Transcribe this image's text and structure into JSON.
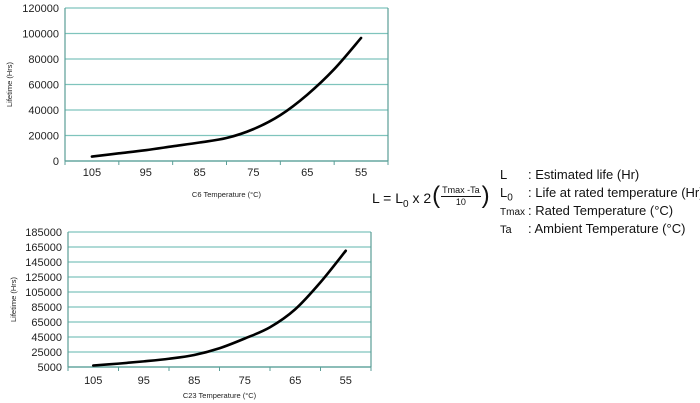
{
  "chart_data": [
    {
      "type": "line",
      "xlabel": "C6 Temperature (°C)",
      "ylabel": "Lifetime (Hrs)",
      "categories": [
        "105",
        "95",
        "85",
        "75",
        "65",
        "55"
      ],
      "ylim": [
        0,
        120000
      ],
      "yticks": [
        "0",
        "20000",
        "40000",
        "60000",
        "80000",
        "100000",
        "120000"
      ],
      "grid": true,
      "x": [
        105,
        100,
        95,
        90,
        85,
        80,
        75,
        70,
        65,
        60,
        55
      ],
      "values": [
        3500,
        6000,
        8500,
        11500,
        14500,
        18000,
        25000,
        36000,
        52000,
        72000,
        96500
      ]
    },
    {
      "type": "line",
      "xlabel": "C23 Temperature (°C)",
      "ylabel": "Lifetime (Hrs)",
      "categories": [
        "105",
        "95",
        "85",
        "75",
        "65",
        "55"
      ],
      "ylim": [
        5000,
        185000
      ],
      "yticks": [
        "5000",
        "25000",
        "45000",
        "65000",
        "85000",
        "105000",
        "125000",
        "145000",
        "165000",
        "185000"
      ],
      "grid": true,
      "x": [
        105,
        100,
        95,
        90,
        85,
        80,
        75,
        70,
        65,
        60,
        55
      ],
      "values": [
        7000,
        9500,
        12500,
        16000,
        21000,
        30000,
        43000,
        58000,
        82000,
        118000,
        160000
      ]
    }
  ],
  "formula": {
    "lhs": "L = L",
    "sub0": "0",
    "mid": " x 2",
    "num": "Tmax -Ta",
    "den": "10"
  },
  "legend": [
    {
      "symbol": "L",
      "text": ": Estimated life (Hr)"
    },
    {
      "symbol": "L0",
      "text": ": Life at rated temperature (Hr)"
    },
    {
      "symbol": "Tmax",
      "text": ": Rated Temperature (°C)"
    },
    {
      "symbol": "Ta",
      "text": ": Ambient Temperature (°C)"
    }
  ],
  "colors": {
    "grid": "#7fc4bd",
    "axis": "#5a9e97",
    "line": "#000000"
  }
}
